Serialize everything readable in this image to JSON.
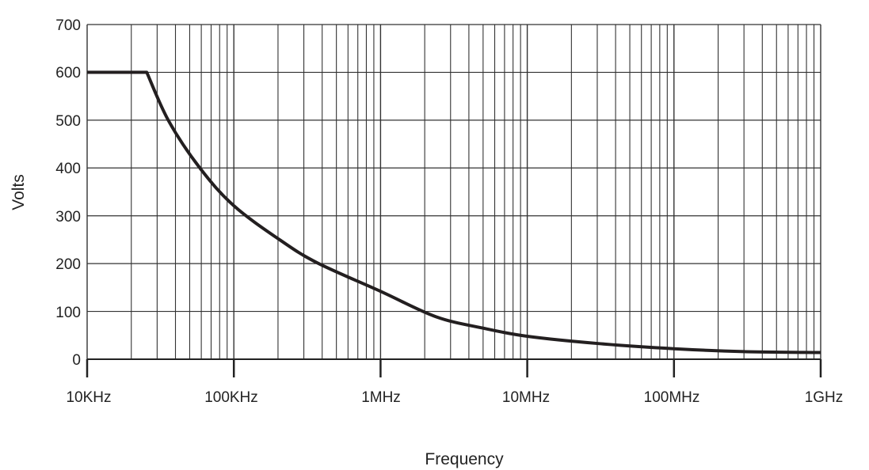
{
  "chart_data": {
    "type": "line",
    "title": "",
    "xlabel": "Frequency",
    "ylabel": "Volts",
    "xscale": "log",
    "xlim": [
      10000,
      1000000000
    ],
    "ylim": [
      0,
      700
    ],
    "grid": true,
    "x_tick_labels": [
      "10KHz",
      "100KHz",
      "1MHz",
      "10MHz",
      "100MHz",
      "1GHz"
    ],
    "y_tick_labels": [
      "0",
      "100",
      "200",
      "300",
      "400",
      "500",
      "600",
      "700"
    ],
    "series": [
      {
        "color": "#231f20",
        "x": [
          10000,
          25500,
          36000,
          59000,
          100000,
          205000,
          368000,
          1000000,
          2380000,
          5000000,
          10000000,
          30000000,
          100000000,
          300000000,
          1000000000
        ],
        "y": [
          600,
          600,
          498,
          399,
          321,
          250,
          202,
          142,
          89,
          65,
          48,
          33,
          22,
          16,
          14
        ]
      }
    ]
  }
}
